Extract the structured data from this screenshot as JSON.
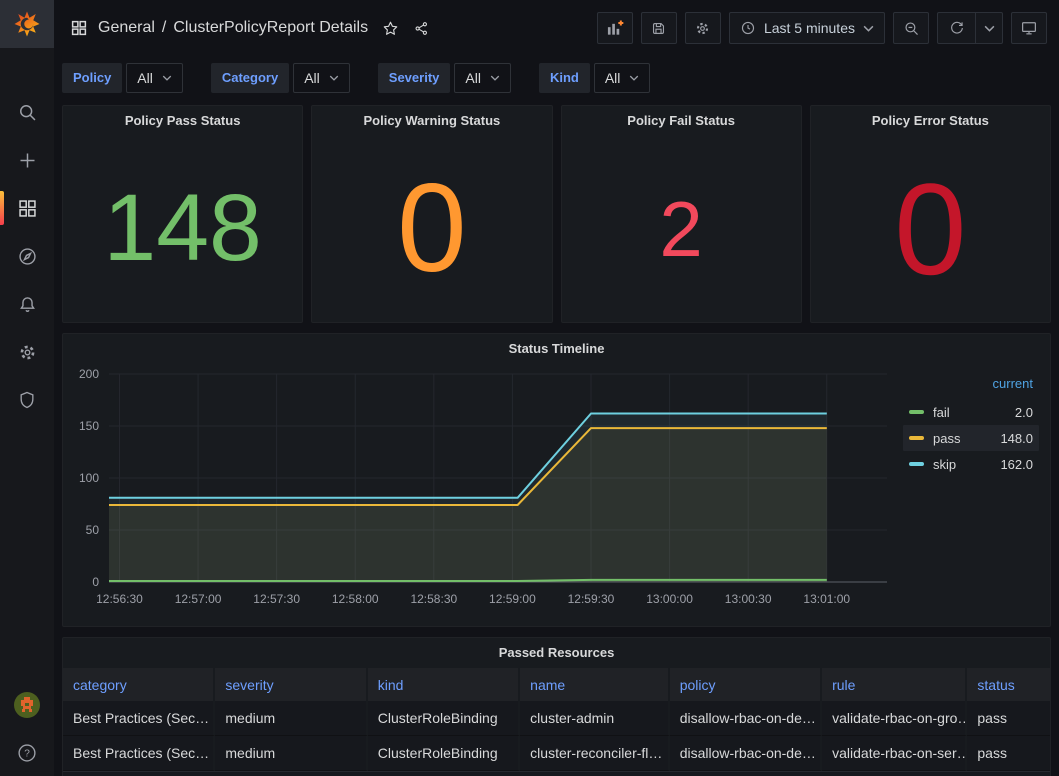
{
  "header": {
    "breadcrumb": {
      "section": "General",
      "separator": "/",
      "title": "ClusterPolicyReport Details"
    },
    "time_range_label": "Last 5 minutes"
  },
  "sidebar": {
    "icons": [
      "search",
      "create",
      "dashboards",
      "explore",
      "alerting",
      "configuration",
      "server-admin"
    ],
    "active_icon": "dashboards",
    "bottom_icons": [
      "avatar",
      "help"
    ],
    "help_glyph": "?"
  },
  "filters": [
    {
      "label": "Policy",
      "value": "All"
    },
    {
      "label": "Category",
      "value": "All"
    },
    {
      "label": "Severity",
      "value": "All"
    },
    {
      "label": "Kind",
      "value": "All"
    }
  ],
  "stats": [
    {
      "title": "Policy Pass Status",
      "value": "148",
      "color": "#73BF69"
    },
    {
      "title": "Policy Warning Status",
      "value": "0",
      "color": "#FF9830"
    },
    {
      "title": "Policy Fail Status",
      "value": "2",
      "color": "#F2495C"
    },
    {
      "title": "Policy Error Status",
      "value": "0",
      "color": "#C4162A"
    }
  ],
  "chart_data": {
    "type": "line",
    "title": "Status Timeline",
    "xlabel": "",
    "ylabel": "",
    "ylim": [
      0,
      200
    ],
    "y_ticks": [
      0,
      50,
      100,
      150,
      200
    ],
    "x_tick_labels": [
      "12:56:30",
      "12:57:00",
      "12:57:30",
      "12:58:00",
      "12:58:30",
      "12:59:00",
      "12:59:30",
      "13:00:00",
      "13:00:30",
      "13:01:00"
    ],
    "x_tick_seconds": [
      0,
      30,
      60,
      90,
      120,
      150,
      180,
      210,
      240,
      270
    ],
    "x_domain_seconds": [
      -4,
      293
    ],
    "grid": true,
    "legend": {
      "position": "right",
      "header": "current"
    },
    "series": [
      {
        "name": "fail",
        "color": "#73BF69",
        "current": 2.0,
        "current_label": "2.0",
        "points": [
          [
            -4,
            1
          ],
          [
            152,
            1
          ],
          [
            180,
            2
          ],
          [
            270,
            2
          ]
        ]
      },
      {
        "name": "pass",
        "color": "#EAB839",
        "current": 148.0,
        "current_label": "148.0",
        "points": [
          [
            -4,
            74
          ],
          [
            152,
            74
          ],
          [
            180,
            148
          ],
          [
            270,
            148
          ]
        ]
      },
      {
        "name": "skip",
        "color": "#6ED0E0",
        "current": 162.0,
        "current_label": "162.0",
        "points": [
          [
            -4,
            81
          ],
          [
            152,
            81
          ],
          [
            180,
            162
          ],
          [
            270,
            162
          ]
        ]
      }
    ]
  },
  "table": {
    "title": "Passed Resources",
    "columns": [
      "category",
      "severity",
      "kind",
      "name",
      "policy",
      "rule",
      "status"
    ],
    "rows": [
      {
        "category": "Best Practices (Sec…",
        "severity": "medium",
        "kind": "ClusterRoleBinding",
        "name": "cluster-admin",
        "policy": "disallow-rbac-on-de…",
        "rule": "validate-rbac-on-gro…",
        "status": "pass"
      },
      {
        "category": "Best Practices (Sec…",
        "severity": "medium",
        "kind": "ClusterRoleBinding",
        "name": "cluster-reconciler-fl…",
        "policy": "disallow-rbac-on-de…",
        "rule": "validate-rbac-on-ser…",
        "status": "pass"
      }
    ]
  },
  "colors": {
    "page_bg": "#111217",
    "panel_bg": "#181b1f",
    "panel_border": "#202226",
    "sidebar_bg": "#17181c",
    "link_blue": "#6e9fff",
    "legend_header_blue": "#4fa3e3",
    "accent_orange": "#ff8833",
    "text_primary": "#d8d9da",
    "text_secondary": "#9da0a8"
  }
}
